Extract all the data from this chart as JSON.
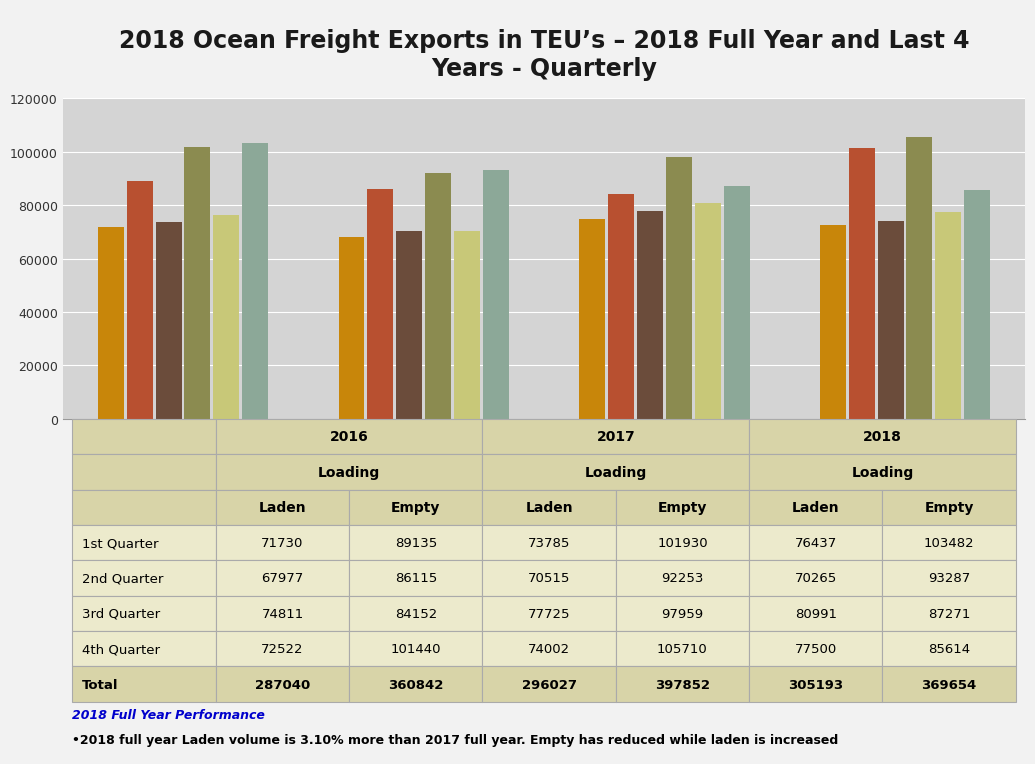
{
  "title": "2018 Ocean Freight Exports in TEU’s – 2018 Full Year and Last 4\nYears - Quarterly",
  "quarters": [
    "1ST QUARTER",
    "2ND QUARTER",
    "3RD QUARTER",
    "4TH QUARTER"
  ],
  "series": {
    "2016 Loading Laden": [
      71730,
      67977,
      74811,
      72522
    ],
    "2016 Loading Empty": [
      89135,
      86115,
      84152,
      101440
    ],
    "2017 Loading Laden": [
      73785,
      70515,
      77725,
      74002
    ],
    "2017 Loading Empty": [
      101930,
      92253,
      97959,
      105710
    ],
    "2018 Loading Laden": [
      76437,
      70265,
      80991,
      77500
    ],
    "2018 Loading Empty": [
      103482,
      93287,
      87271,
      85614
    ]
  },
  "colors": {
    "2016 Loading Laden": "#C8860A",
    "2016 Loading Empty": "#B85030",
    "2017 Loading Laden": "#6B4C3B",
    "2017 Loading Empty": "#8B8B50",
    "2018 Loading Laden": "#C8C878",
    "2018 Loading Empty": "#8CA898"
  },
  "ylim": [
    0,
    120000
  ],
  "yticks": [
    0,
    20000,
    40000,
    60000,
    80000,
    100000,
    120000
  ],
  "chart_bg": "#D4D4D4",
  "outer_bg": "#F2F2F2",
  "table_bg": "#ECEACC",
  "table_header_bg": "#D8D4A8",
  "note_bg": "#7FD8F0",
  "note_title": "2018 Full Year Performance",
  "note_text": "•2018 full year Laden volume is 3.10% more than 2017 full year. Empty has reduced while laden is increased",
  "table_rows": [
    "1st Quarter",
    "2nd Quarter",
    "3rd Quarter",
    "4th Quarter",
    "Total"
  ],
  "table_keys": [
    "2016_laden",
    "2016_empty",
    "2017_laden",
    "2017_empty",
    "2018_laden",
    "2018_empty"
  ],
  "table_data": {
    "2016_laden": [
      71730,
      67977,
      74811,
      72522,
      287040
    ],
    "2016_empty": [
      89135,
      86115,
      84152,
      101440,
      360842
    ],
    "2017_laden": [
      73785,
      70515,
      77725,
      74002,
      296027
    ],
    "2017_empty": [
      101930,
      92253,
      97959,
      105710,
      397852
    ],
    "2018_laden": [
      76437,
      70265,
      80991,
      77500,
      305193
    ],
    "2018_empty": [
      103482,
      93287,
      87271,
      85614,
      369654
    ]
  }
}
